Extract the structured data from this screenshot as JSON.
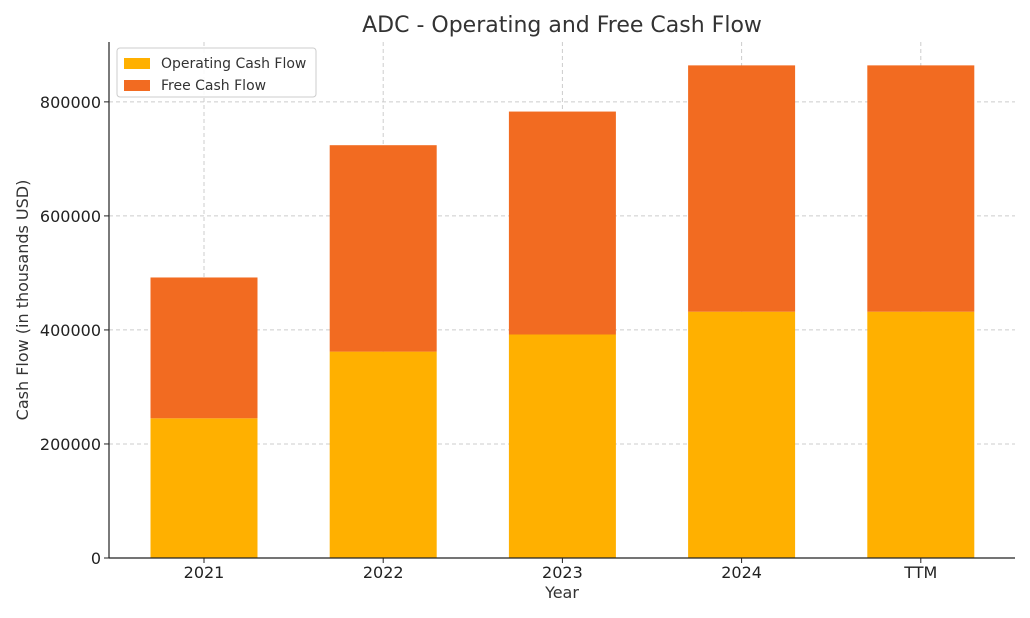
{
  "chart_data": {
    "type": "bar",
    "stacked": true,
    "title": "ADC - Operating and Free Cash Flow",
    "xlabel": "Year",
    "ylabel": "Cash Flow (in thousands USD)",
    "categories": [
      "2021",
      "2022",
      "2023",
      "2024",
      "TTM"
    ],
    "series": [
      {
        "name": "Operating Cash Flow",
        "color": "#FFB000",
        "values": [
          245000,
          362000,
          392000,
          432000,
          432000
        ]
      },
      {
        "name": "Free Cash Flow",
        "color": "#F26B21",
        "values": [
          247000,
          362000,
          391000,
          432000,
          432000
        ]
      }
    ],
    "ylim": [
      0,
      905000
    ],
    "yticks": [
      0,
      200000,
      400000,
      600000,
      800000
    ],
    "ytick_labels": [
      "0",
      "200000",
      "400000",
      "600000",
      "800000"
    ],
    "grid": true,
    "legend_position": "top-left"
  }
}
